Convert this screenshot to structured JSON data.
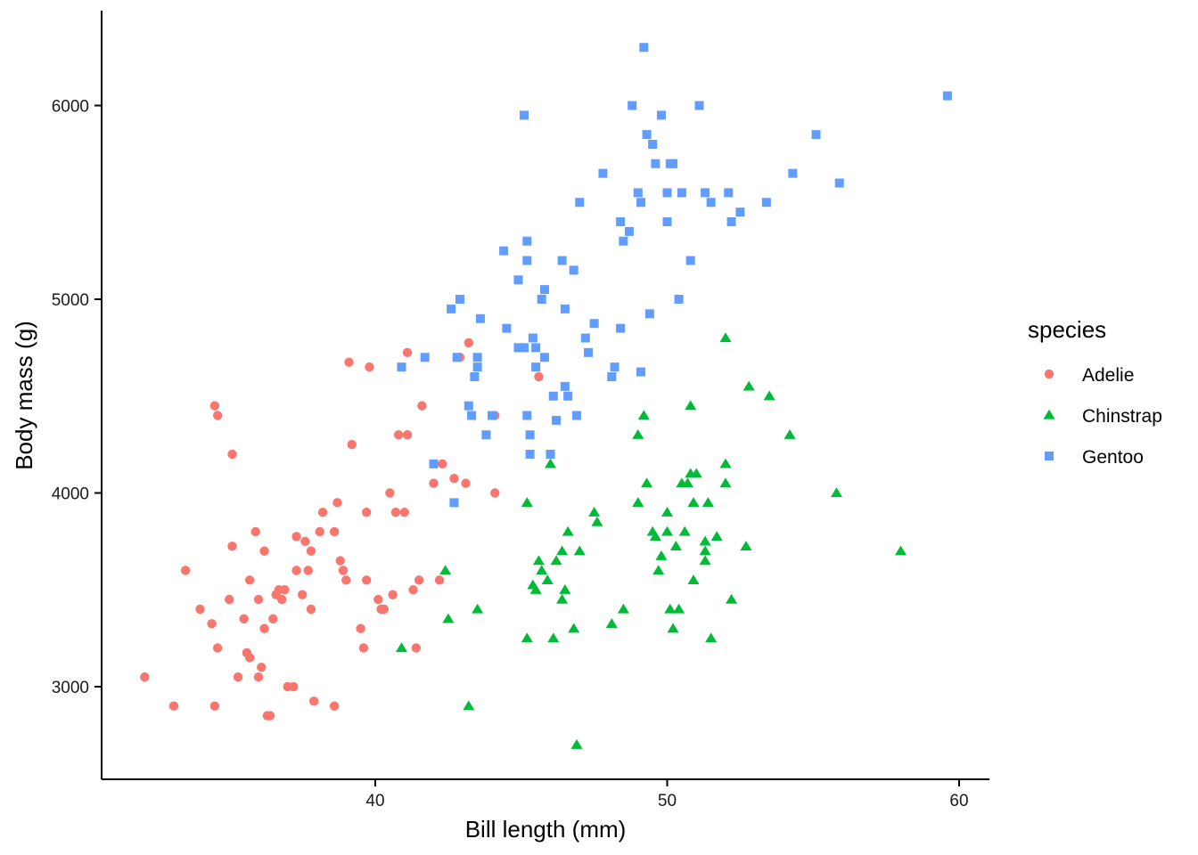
{
  "chart_data": {
    "type": "scatter",
    "title": "",
    "xlabel": "Bill length (mm)",
    "ylabel": "Body mass (g)",
    "xlim": [
      31,
      61
    ],
    "ylim": [
      2600,
      6500
    ],
    "xticks": [
      40,
      50,
      60
    ],
    "yticks": [
      3000,
      4000,
      5000,
      6000
    ],
    "grid": false,
    "legend": {
      "title": "species",
      "placement": "right"
    },
    "series": [
      {
        "name": "Adelie",
        "color": "#F8766D",
        "marker": "circle",
        "points": [
          [
            32.1,
            3050
          ],
          [
            33.1,
            2900
          ],
          [
            33.5,
            3600
          ],
          [
            34.0,
            3400
          ],
          [
            34.4,
            3325
          ],
          [
            34.5,
            2900
          ],
          [
            34.6,
            4400
          ],
          [
            34.6,
            3200
          ],
          [
            35.0,
            3450
          ],
          [
            35.1,
            4200
          ],
          [
            35.1,
            3725
          ],
          [
            35.3,
            3050
          ],
          [
            35.5,
            3350
          ],
          [
            35.6,
            3175
          ],
          [
            35.7,
            3550
          ],
          [
            35.7,
            3150
          ],
          [
            35.9,
            3800
          ],
          [
            36.0,
            3450
          ],
          [
            36.0,
            3050
          ],
          [
            36.1,
            3100
          ],
          [
            36.2,
            3300
          ],
          [
            36.3,
            2850
          ],
          [
            36.4,
            2850
          ],
          [
            36.5,
            3350
          ],
          [
            36.6,
            3475
          ],
          [
            36.7,
            3500
          ],
          [
            36.8,
            3450
          ],
          [
            36.9,
            3500
          ],
          [
            37.0,
            3000
          ],
          [
            37.2,
            3000
          ],
          [
            37.3,
            3775
          ],
          [
            37.5,
            3475
          ],
          [
            37.6,
            3750
          ],
          [
            37.7,
            3600
          ],
          [
            37.8,
            3400
          ],
          [
            37.9,
            2925
          ],
          [
            38.1,
            3800
          ],
          [
            38.2,
            3900
          ],
          [
            38.6,
            3800
          ],
          [
            38.6,
            2900
          ],
          [
            38.8,
            3650
          ],
          [
            38.9,
            3600
          ],
          [
            39.0,
            3550
          ],
          [
            39.1,
            4675
          ],
          [
            39.2,
            4250
          ],
          [
            39.5,
            3300
          ],
          [
            39.6,
            3200
          ],
          [
            39.7,
            3900
          ],
          [
            39.8,
            4650
          ],
          [
            40.1,
            3450
          ],
          [
            40.2,
            3400
          ],
          [
            40.3,
            3400
          ],
          [
            40.5,
            4000
          ],
          [
            40.6,
            3475
          ],
          [
            40.8,
            4300
          ],
          [
            41.0,
            3900
          ],
          [
            41.1,
            4300
          ],
          [
            41.1,
            4725
          ],
          [
            41.3,
            3500
          ],
          [
            41.4,
            3200
          ],
          [
            41.5,
            3550
          ],
          [
            41.6,
            4450
          ],
          [
            42.0,
            4050
          ],
          [
            42.2,
            3550
          ],
          [
            42.3,
            4150
          ],
          [
            42.7,
            4075
          ],
          [
            42.9,
            4700
          ],
          [
            43.1,
            4050
          ],
          [
            43.2,
            4775
          ],
          [
            44.1,
            4000
          ],
          [
            44.1,
            4400
          ],
          [
            45.6,
            4600
          ],
          [
            46.0,
            4200
          ],
          [
            36.2,
            3700
          ],
          [
            37.3,
            3600
          ],
          [
            38.7,
            3950
          ],
          [
            39.7,
            3550
          ],
          [
            40.7,
            3900
          ],
          [
            37.8,
            3700
          ],
          [
            34.5,
            4450
          ]
        ]
      },
      {
        "name": "Chinstrap",
        "color": "#00BA38",
        "marker": "triangle",
        "points": [
          [
            40.9,
            3200
          ],
          [
            42.4,
            3600
          ],
          [
            42.5,
            3350
          ],
          [
            43.2,
            2900
          ],
          [
            43.5,
            3400
          ],
          [
            45.2,
            3250
          ],
          [
            45.2,
            3950
          ],
          [
            45.4,
            3525
          ],
          [
            45.5,
            3500
          ],
          [
            45.6,
            3650
          ],
          [
            45.7,
            3600
          ],
          [
            45.9,
            3550
          ],
          [
            46.0,
            4150
          ],
          [
            46.1,
            3250
          ],
          [
            46.2,
            3650
          ],
          [
            46.4,
            3700
          ],
          [
            46.4,
            3450
          ],
          [
            46.5,
            3500
          ],
          [
            46.6,
            3800
          ],
          [
            46.8,
            3300
          ],
          [
            46.9,
            2700
          ],
          [
            47.0,
            3700
          ],
          [
            47.5,
            3900
          ],
          [
            47.6,
            3850
          ],
          [
            48.1,
            3325
          ],
          [
            48.5,
            3400
          ],
          [
            49.0,
            3950
          ],
          [
            49.0,
            4300
          ],
          [
            49.2,
            4400
          ],
          [
            49.3,
            4050
          ],
          [
            49.5,
            3800
          ],
          [
            49.6,
            3775
          ],
          [
            49.7,
            3600
          ],
          [
            49.8,
            3675
          ],
          [
            50.0,
            3900
          ],
          [
            50.1,
            3400
          ],
          [
            50.2,
            3300
          ],
          [
            50.3,
            3725
          ],
          [
            50.4,
            3400
          ],
          [
            50.5,
            4050
          ],
          [
            50.6,
            3800
          ],
          [
            50.7,
            4050
          ],
          [
            50.8,
            4450
          ],
          [
            50.8,
            4100
          ],
          [
            50.9,
            3550
          ],
          [
            51.0,
            4100
          ],
          [
            51.3,
            3650
          ],
          [
            51.3,
            3750
          ],
          [
            51.4,
            3950
          ],
          [
            51.5,
            3250
          ],
          [
            51.7,
            3775
          ],
          [
            52.0,
            4800
          ],
          [
            52.0,
            4150
          ],
          [
            52.0,
            4050
          ],
          [
            52.2,
            3450
          ],
          [
            52.7,
            3725
          ],
          [
            52.8,
            4550
          ],
          [
            53.5,
            4500
          ],
          [
            54.2,
            4300
          ],
          [
            55.8,
            4000
          ],
          [
            58.0,
            3700
          ],
          [
            50.9,
            3950
          ],
          [
            50.0,
            3800
          ],
          [
            51.3,
            3700
          ]
        ]
      },
      {
        "name": "Gentoo",
        "color": "#619CFF",
        "marker": "square",
        "points": [
          [
            40.9,
            4650
          ],
          [
            41.7,
            4700
          ],
          [
            42.0,
            4150
          ],
          [
            42.6,
            4950
          ],
          [
            42.7,
            3950
          ],
          [
            42.8,
            4700
          ],
          [
            42.9,
            5000
          ],
          [
            43.2,
            4450
          ],
          [
            43.3,
            4400
          ],
          [
            43.4,
            4600
          ],
          [
            43.5,
            4700
          ],
          [
            43.5,
            4650
          ],
          [
            43.6,
            4900
          ],
          [
            43.8,
            4300
          ],
          [
            44.0,
            4400
          ],
          [
            44.4,
            5250
          ],
          [
            44.5,
            4850
          ],
          [
            44.9,
            4750
          ],
          [
            45.1,
            4750
          ],
          [
            45.1,
            5950
          ],
          [
            45.2,
            4400
          ],
          [
            45.2,
            5300
          ],
          [
            45.2,
            5200
          ],
          [
            45.3,
            4300
          ],
          [
            45.4,
            4800
          ],
          [
            45.5,
            4750
          ],
          [
            45.5,
            4650
          ],
          [
            45.7,
            5000
          ],
          [
            45.8,
            4700
          ],
          [
            46.1,
            4500
          ],
          [
            46.2,
            4375
          ],
          [
            46.4,
            5200
          ],
          [
            46.5,
            4550
          ],
          [
            46.6,
            4500
          ],
          [
            46.8,
            5150
          ],
          [
            47.2,
            4800
          ],
          [
            47.5,
            4875
          ],
          [
            47.8,
            5650
          ],
          [
            48.1,
            4600
          ],
          [
            48.2,
            4650
          ],
          [
            48.4,
            5400
          ],
          [
            48.5,
            5300
          ],
          [
            48.7,
            5350
          ],
          [
            48.8,
            6000
          ],
          [
            49.0,
            5550
          ],
          [
            49.1,
            5500
          ],
          [
            49.1,
            4625
          ],
          [
            49.2,
            6300
          ],
          [
            49.3,
            5850
          ],
          [
            49.5,
            5800
          ],
          [
            49.6,
            5700
          ],
          [
            49.8,
            5950
          ],
          [
            50.0,
            5400
          ],
          [
            50.0,
            5550
          ],
          [
            50.1,
            5700
          ],
          [
            50.4,
            5000
          ],
          [
            50.5,
            5550
          ],
          [
            50.8,
            5200
          ],
          [
            51.1,
            6000
          ],
          [
            51.3,
            5550
          ],
          [
            51.5,
            5500
          ],
          [
            52.1,
            5550
          ],
          [
            52.2,
            5400
          ],
          [
            52.5,
            5450
          ],
          [
            53.4,
            5500
          ],
          [
            54.3,
            5650
          ],
          [
            55.1,
            5850
          ],
          [
            55.9,
            5600
          ],
          [
            59.6,
            6050
          ],
          [
            45.3,
            4200
          ],
          [
            46.0,
            4200
          ],
          [
            47.3,
            4725
          ],
          [
            48.4,
            4850
          ],
          [
            49.4,
            4925
          ],
          [
            50.2,
            5700
          ],
          [
            47.0,
            5500
          ],
          [
            46.9,
            4400
          ],
          [
            46.5,
            4950
          ],
          [
            44.9,
            5100
          ],
          [
            45.8,
            5050
          ]
        ]
      }
    ]
  }
}
